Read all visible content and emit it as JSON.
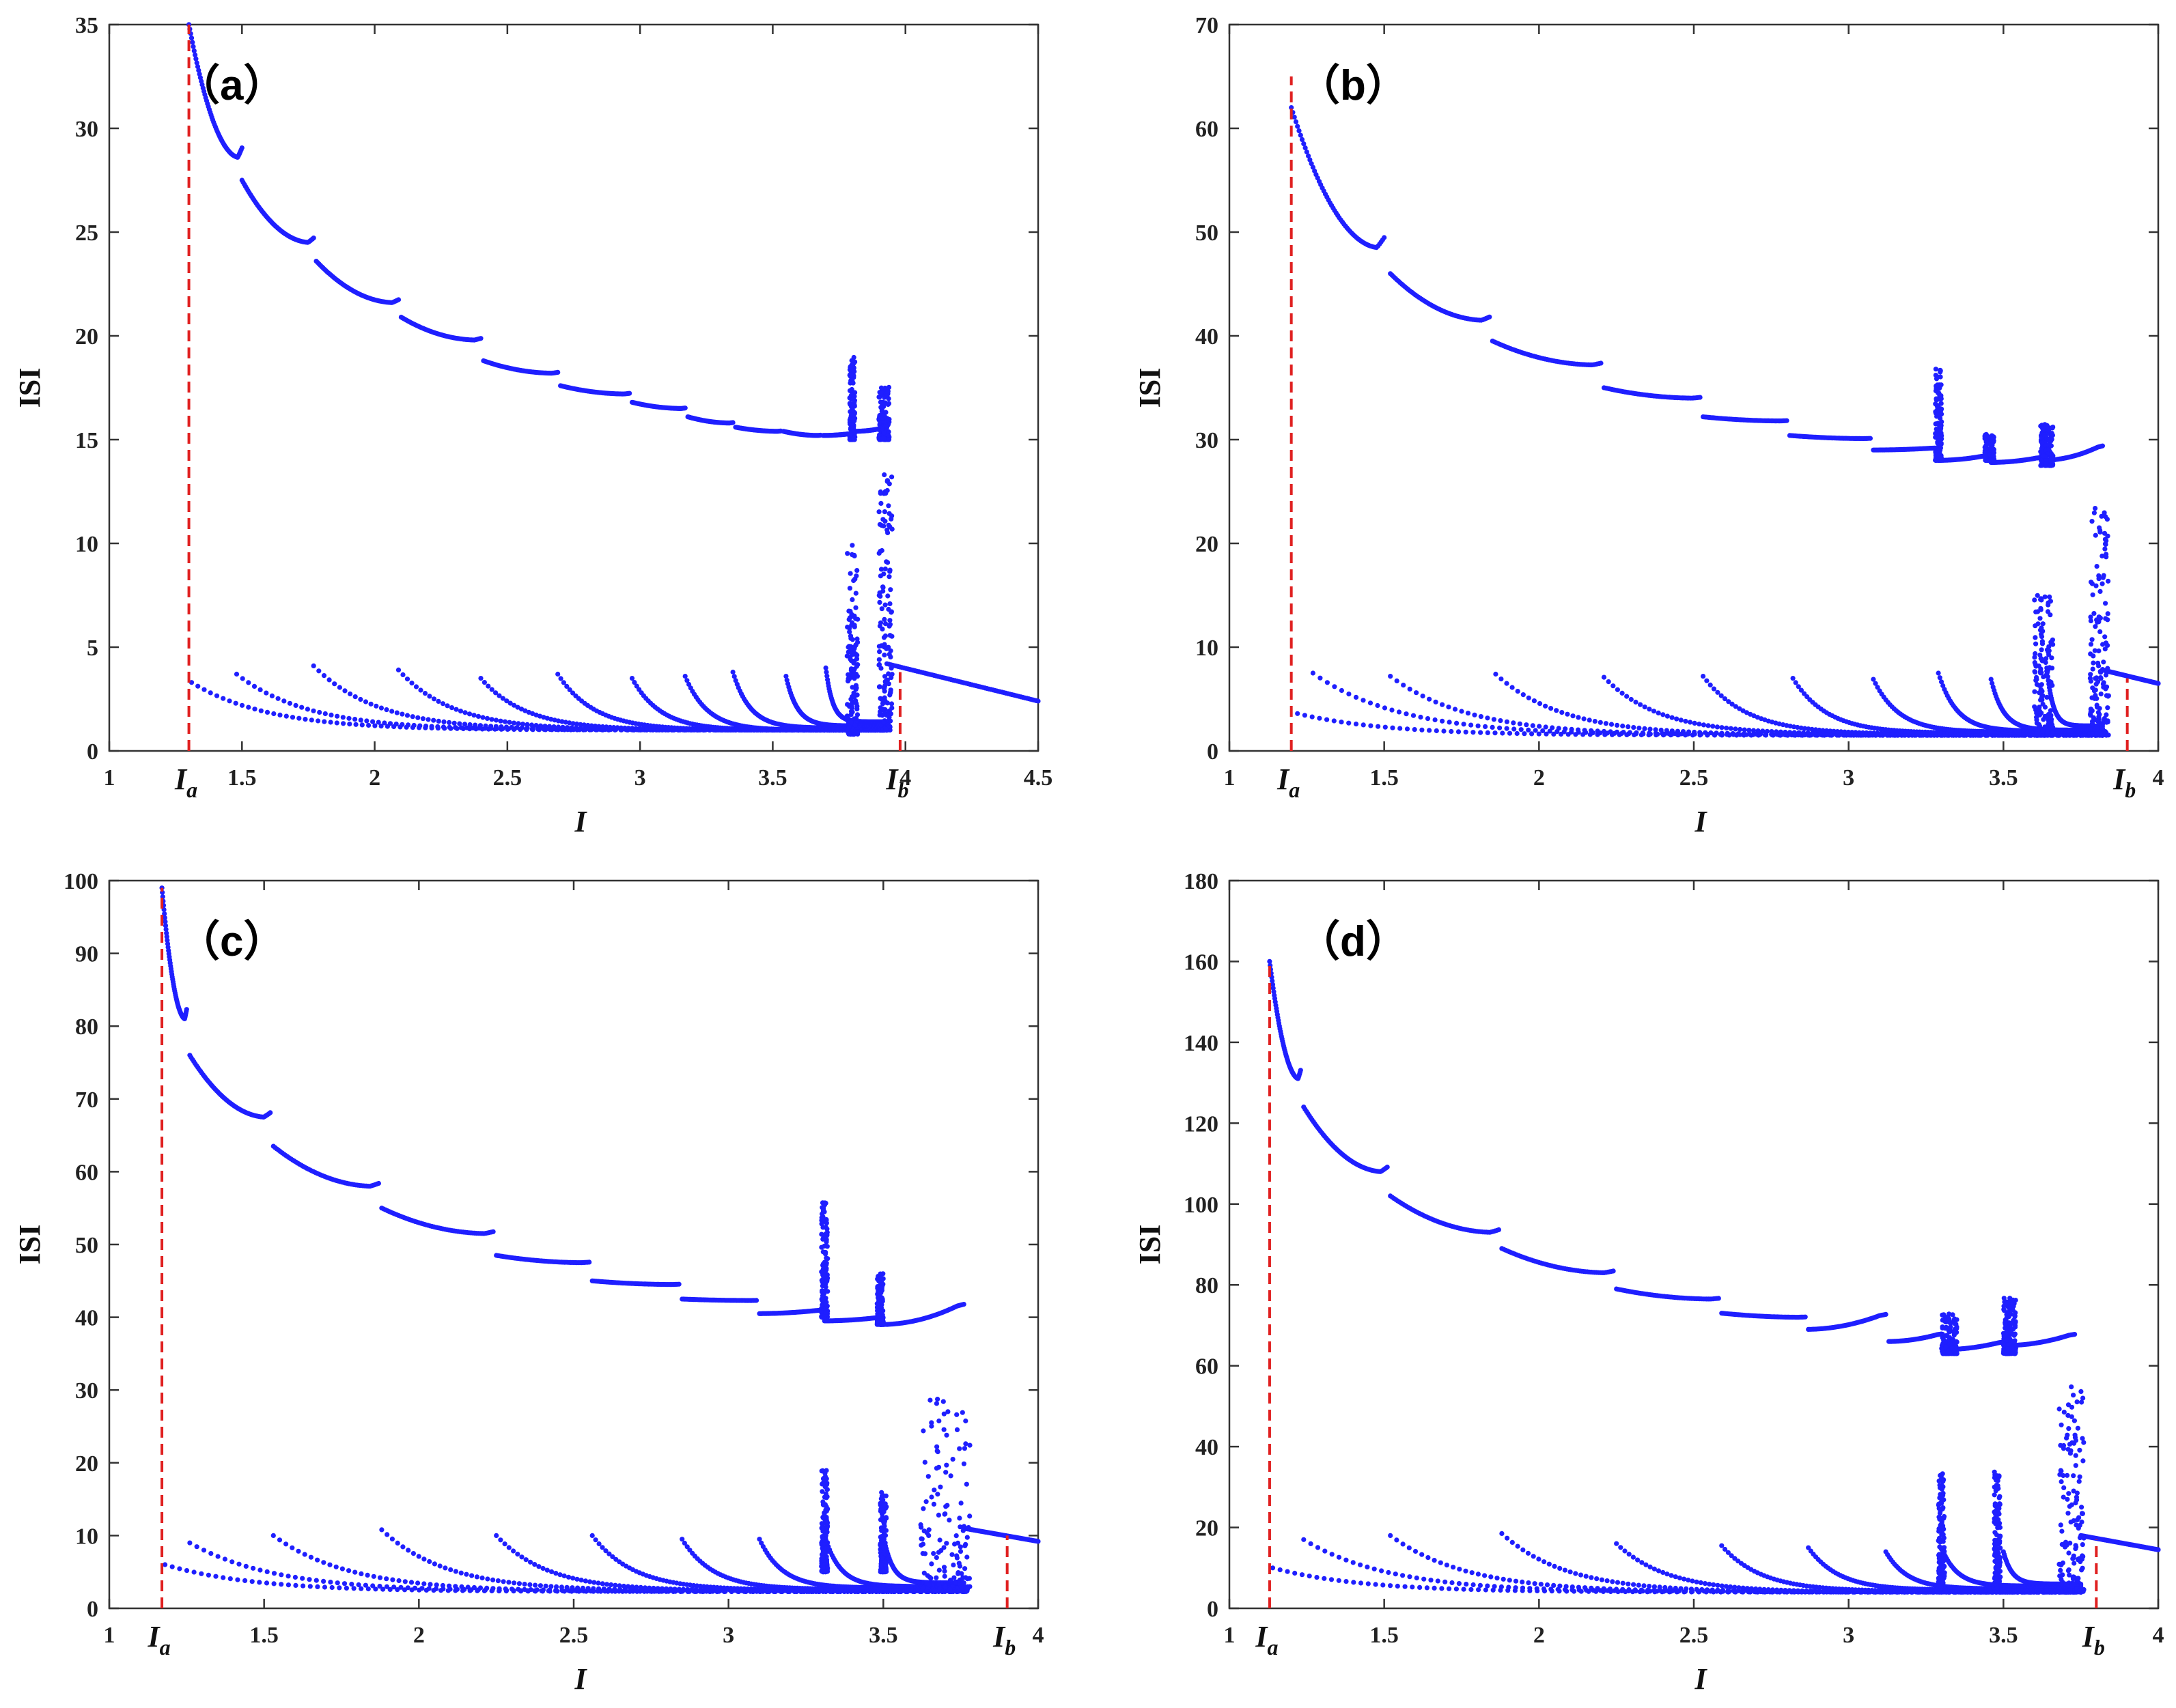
{
  "colors": {
    "scatter": "#1f1fff",
    "marker_line": "#e02020",
    "axes": "#333333"
  },
  "chart_data": [
    {
      "type": "scatter",
      "panel_label": "（a）",
      "xlabel": "I",
      "ylabel": "ISI",
      "xlim": [
        1,
        4.5
      ],
      "ylim": [
        0,
        35
      ],
      "xticks": [
        1,
        1.5,
        2,
        2.5,
        3,
        3.5,
        4,
        4.5
      ],
      "xtick_labels": [
        "1",
        "1.5",
        "2",
        "2.5",
        "3",
        "3.5",
        "4",
        "4.5"
      ],
      "yticks": [
        0,
        5,
        10,
        15,
        20,
        25,
        30,
        35
      ],
      "ytick_labels": [
        "0",
        "5",
        "10",
        "15",
        "20",
        "25",
        "30",
        "35"
      ],
      "markers": [
        {
          "name": "I",
          "sub": "a",
          "x": 1.3,
          "y_top": 35
        },
        {
          "name": "I",
          "sub": "b",
          "x": 3.98,
          "y_top": 3.8
        }
      ],
      "upper_branches": [
        [
          1.3,
          1.5,
          35,
          28.6
        ],
        [
          1.5,
          1.77,
          27.5,
          24.5
        ],
        [
          1.78,
          2.09,
          23.6,
          21.6
        ],
        [
          2.1,
          2.4,
          20.9,
          19.8
        ],
        [
          2.41,
          2.69,
          18.8,
          18.2
        ],
        [
          2.7,
          2.96,
          17.6,
          17.2
        ],
        [
          2.97,
          3.17,
          16.8,
          16.5
        ],
        [
          3.18,
          3.35,
          16.1,
          15.8
        ],
        [
          3.36,
          3.53,
          15.6,
          15.4
        ],
        [
          3.54,
          3.68,
          15.4,
          15.2
        ],
        [
          3.69,
          3.8,
          15.2,
          15.3
        ],
        [
          3.81,
          3.93,
          15.4,
          15.6
        ]
      ],
      "lower_branches": [
        [
          1.31,
          3.93,
          3.3,
          1.0
        ],
        [
          1.48,
          3.93,
          3.7,
          1.0
        ],
        [
          1.77,
          3.93,
          4.1,
          1.0
        ],
        [
          2.09,
          3.93,
          3.9,
          1.0
        ],
        [
          2.4,
          3.93,
          3.5,
          1.0
        ],
        [
          2.69,
          3.93,
          3.7,
          1.0
        ],
        [
          2.97,
          3.93,
          3.5,
          1.0
        ],
        [
          3.17,
          3.93,
          3.6,
          1.0
        ],
        [
          3.35,
          3.93,
          3.8,
          1.1
        ],
        [
          3.55,
          3.93,
          3.6,
          1.2
        ],
        [
          3.7,
          3.93,
          4.0,
          1.4
        ]
      ],
      "tail": [
        3.93,
        4.5,
        4.2,
        2.4
      ],
      "chaos_bands": [
        [
          3.78,
          3.82,
          0.8,
          10
        ],
        [
          3.9,
          3.95,
          1.0,
          13.5
        ],
        [
          3.79,
          3.81,
          15,
          19
        ],
        [
          3.9,
          3.94,
          15,
          17.7
        ]
      ]
    },
    {
      "type": "scatter",
      "panel_label": "（b）",
      "xlabel": "I",
      "ylabel": "ISI",
      "xlim": [
        1,
        4
      ],
      "ylim": [
        0,
        70
      ],
      "xticks": [
        1,
        1.5,
        2,
        2.5,
        3,
        3.5,
        4
      ],
      "xtick_labels": [
        "1",
        "1.5",
        "2",
        "2.5",
        "3",
        "3.5",
        "4"
      ],
      "yticks": [
        0,
        10,
        20,
        30,
        40,
        50,
        60,
        70
      ],
      "ytick_labels": [
        "0",
        "10",
        "20",
        "30",
        "40",
        "50",
        "60",
        "70"
      ],
      "markers": [
        {
          "name": "I",
          "sub": "a",
          "x": 1.2,
          "y_top": 65
        },
        {
          "name": "I",
          "sub": "b",
          "x": 3.9,
          "y_top": 7
        }
      ],
      "upper_branches": [
        [
          1.2,
          1.5,
          62,
          48.5
        ],
        [
          1.52,
          1.84,
          46,
          41.5
        ],
        [
          1.85,
          2.2,
          39.5,
          37.2
        ],
        [
          2.21,
          2.52,
          35,
          34
        ],
        [
          2.53,
          2.8,
          32.2,
          31.8
        ],
        [
          2.81,
          3.07,
          30.4,
          30.1
        ],
        [
          3.08,
          3.28,
          29,
          29.2
        ],
        [
          3.29,
          3.45,
          28,
          28.5
        ],
        [
          3.46,
          3.62,
          27.8,
          28.3
        ],
        [
          3.63,
          3.82,
          28,
          29.5
        ]
      ],
      "lower_branches": [
        [
          1.22,
          3.82,
          3.6,
          1.5
        ],
        [
          1.27,
          3.82,
          7.5,
          1.5
        ],
        [
          1.52,
          3.82,
          7.2,
          1.5
        ],
        [
          1.86,
          3.82,
          7.4,
          1.5
        ],
        [
          2.21,
          3.82,
          7.1,
          1.6
        ],
        [
          2.53,
          3.82,
          7.2,
          1.6
        ],
        [
          2.82,
          3.82,
          7.0,
          1.7
        ],
        [
          3.08,
          3.82,
          6.9,
          1.8
        ],
        [
          3.29,
          3.82,
          7.5,
          1.9
        ],
        [
          3.46,
          3.82,
          6.9,
          2.0
        ],
        [
          3.64,
          3.82,
          8.0,
          2.4
        ]
      ],
      "tail": [
        3.82,
        4.0,
        7.8,
        6.5
      ],
      "chaos_bands": [
        [
          3.6,
          3.66,
          1.5,
          15
        ],
        [
          3.78,
          3.84,
          1.5,
          24
        ],
        [
          3.28,
          3.3,
          28,
          37
        ],
        [
          3.62,
          3.66,
          27.5,
          31.5
        ],
        [
          3.44,
          3.47,
          28,
          30.5
        ]
      ]
    },
    {
      "type": "scatter",
      "panel_label": "（c）",
      "xlabel": "I",
      "ylabel": "ISI",
      "xlim": [
        1,
        4
      ],
      "ylim": [
        0,
        100
      ],
      "xticks": [
        1,
        1.5,
        2,
        2.5,
        3,
        3.5,
        4
      ],
      "xtick_labels": [
        "1",
        "1.5",
        "2",
        "2.5",
        "3",
        "3.5",
        "4"
      ],
      "yticks": [
        0,
        10,
        20,
        30,
        40,
        50,
        60,
        70,
        80,
        90,
        100
      ],
      "ytick_labels": [
        "0",
        "10",
        "20",
        "30",
        "40",
        "50",
        "60",
        "70",
        "80",
        "90",
        "100"
      ],
      "markers": [
        {
          "name": "I",
          "sub": "a",
          "x": 1.17,
          "y_top": 99
        },
        {
          "name": "I",
          "sub": "b",
          "x": 3.9,
          "y_top": 10
        }
      ],
      "upper_branches": [
        [
          1.17,
          1.25,
          99,
          81
        ],
        [
          1.26,
          1.52,
          76,
          67.5
        ],
        [
          1.53,
          1.87,
          63.5,
          58
        ],
        [
          1.88,
          2.24,
          55,
          51.5
        ],
        [
          2.25,
          2.55,
          48.5,
          47.5
        ],
        [
          2.56,
          2.84,
          45,
          44.5
        ],
        [
          2.85,
          3.09,
          42.5,
          42.3
        ],
        [
          3.1,
          3.3,
          40.5,
          41
        ],
        [
          3.31,
          3.49,
          39.5,
          40
        ],
        [
          3.5,
          3.76,
          39,
          42
        ]
      ],
      "lower_branches": [
        [
          1.18,
          3.76,
          6.0,
          2.3
        ],
        [
          1.26,
          3.76,
          9.0,
          2.3
        ],
        [
          1.53,
          3.76,
          10.0,
          2.3
        ],
        [
          1.88,
          3.76,
          10.8,
          2.4
        ],
        [
          2.25,
          3.76,
          10.0,
          2.4
        ],
        [
          2.56,
          3.76,
          10.0,
          2.5
        ],
        [
          2.85,
          3.76,
          9.5,
          2.6
        ],
        [
          3.1,
          3.76,
          9.5,
          2.8
        ],
        [
          3.31,
          3.76,
          10.0,
          3.0
        ],
        [
          3.5,
          3.76,
          10.0,
          3.5
        ]
      ],
      "tail": [
        3.76,
        4.0,
        11,
        9.2
      ],
      "chaos_bands": [
        [
          3.62,
          3.78,
          2.3,
          30
        ],
        [
          3.3,
          3.32,
          5,
          19
        ],
        [
          3.49,
          3.51,
          5,
          16
        ],
        [
          3.3,
          3.32,
          40,
          56
        ],
        [
          3.48,
          3.5,
          39,
          46
        ]
      ]
    },
    {
      "type": "scatter",
      "panel_label": "（d）",
      "xlabel": "I",
      "ylabel": "ISI",
      "xlim": [
        1,
        4
      ],
      "ylim": [
        0,
        180
      ],
      "xticks": [
        1,
        1.5,
        2,
        2.5,
        3,
        3.5,
        4
      ],
      "xtick_labels": [
        "1",
        "1.5",
        "2",
        "2.5",
        "3",
        "3.5",
        "4"
      ],
      "yticks": [
        0,
        20,
        40,
        60,
        80,
        100,
        120,
        140,
        160,
        180
      ],
      "ytick_labels": [
        "0",
        "20",
        "40",
        "60",
        "80",
        "100",
        "120",
        "140",
        "160",
        "180"
      ],
      "markers": [
        {
          "name": "I",
          "sub": "a",
          "x": 1.13,
          "y_top": 160
        },
        {
          "name": "I",
          "sub": "b",
          "x": 3.8,
          "y_top": 17
        }
      ],
      "upper_branches": [
        [
          1.13,
          1.23,
          160,
          131
        ],
        [
          1.24,
          1.51,
          124,
          108
        ],
        [
          1.52,
          1.87,
          102,
          93
        ],
        [
          1.88,
          2.24,
          89,
          83
        ],
        [
          2.25,
          2.58,
          79,
          76.5
        ],
        [
          2.59,
          2.86,
          73,
          72
        ],
        [
          2.87,
          3.12,
          69,
          73
        ],
        [
          3.13,
          3.3,
          66,
          68
        ],
        [
          3.31,
          3.5,
          64,
          66
        ],
        [
          3.51,
          3.73,
          65,
          68
        ]
      ],
      "lower_branches": [
        [
          1.14,
          3.75,
          10,
          4
        ],
        [
          1.24,
          3.75,
          17,
          4
        ],
        [
          1.52,
          3.75,
          18,
          4
        ],
        [
          1.88,
          3.75,
          18.5,
          4
        ],
        [
          2.25,
          3.75,
          16,
          4
        ],
        [
          2.59,
          3.75,
          15.5,
          4.2
        ],
        [
          2.87,
          3.75,
          15,
          4.5
        ],
        [
          3.12,
          3.75,
          14,
          4.8
        ],
        [
          3.3,
          3.75,
          15,
          5.5
        ],
        [
          3.5,
          3.75,
          14,
          6
        ]
      ],
      "tail": [
        3.75,
        4.0,
        18,
        14.5
      ],
      "chaos_bands": [
        [
          3.68,
          3.76,
          4,
          55
        ],
        [
          3.29,
          3.31,
          5,
          34
        ],
        [
          3.47,
          3.49,
          5,
          34
        ],
        [
          3.3,
          3.35,
          63,
          73
        ],
        [
          3.5,
          3.54,
          63,
          77
        ]
      ]
    }
  ]
}
